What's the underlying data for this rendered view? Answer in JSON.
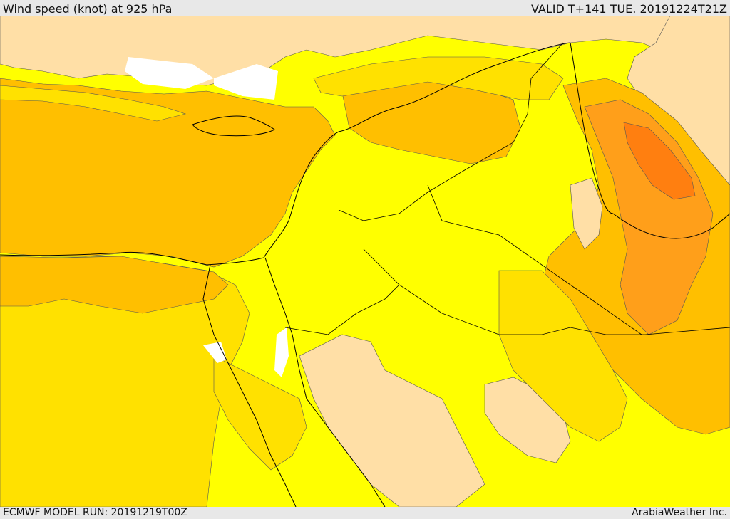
{
  "header": {
    "title": "Wind speed (knot) at 925 hPa",
    "valid": "VALID T+141 TUE. 20191224T21Z"
  },
  "footer": {
    "model_run": "ECMWF MODEL RUN: 20191219T00Z",
    "credit": "ArabiaWeather Inc."
  },
  "map": {
    "palette": {
      "calm": "#ffdfa6",
      "light": "#ffff00",
      "moderate": "#ffe100",
      "fresh": "#ffbf00",
      "strong": "#ff9f1a",
      "stronger": "#ff7f10",
      "sea_white": "#ffffff",
      "coast_line": "#000000",
      "contour_line": "#555555"
    }
  }
}
